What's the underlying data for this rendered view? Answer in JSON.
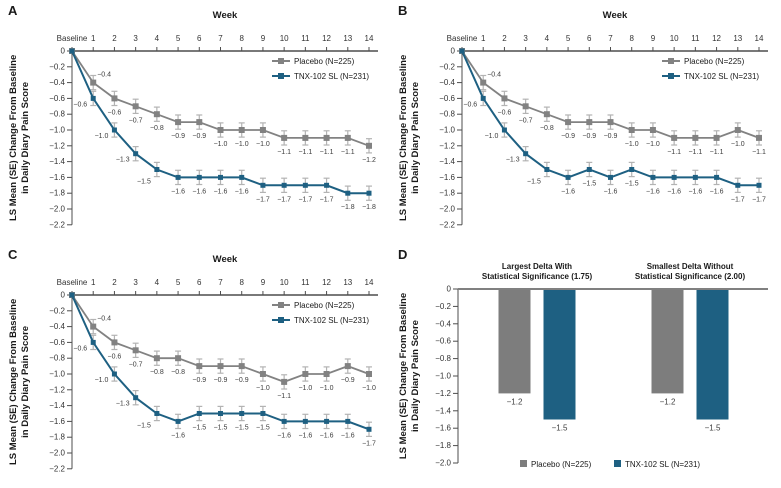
{
  "figure": {
    "panel_letters": [
      "A",
      "B",
      "C",
      "D"
    ],
    "colors": {
      "placebo": "#828282",
      "placebo_bar": "#7d7d7d",
      "tnx": "#1e6082",
      "error_bar": "#b3b3b3",
      "axis": "#4d4d4d",
      "zero_line": "#808080",
      "label_text": "#3d3d3d",
      "tick_text": "#333333",
      "title_text": "#1a1a1a"
    }
  },
  "chart_data": [
    {
      "panel": "A",
      "type": "line",
      "title": "Week",
      "ylabel_line1": "LS Mean (SE) Change From Baseline",
      "ylabel_line2": "in Daily Diary Pain Score",
      "categories": [
        "Baseline",
        "1",
        "2",
        "3",
        "4",
        "5",
        "6",
        "7",
        "8",
        "9",
        "10",
        "11",
        "12",
        "13",
        "14"
      ],
      "ylim": [
        0,
        -2.2
      ],
      "yticks": [
        "0",
        "−0.2",
        "−0.4",
        "−0.6",
        "−0.8",
        "−1.0",
        "−1.2",
        "−1.4",
        "−1.6",
        "−1.8",
        "−2.0",
        "−2.2"
      ],
      "grid": false,
      "legend_position": "top-right",
      "se": 0.09,
      "series": [
        {
          "name": "Placebo (N=225)",
          "color": "#828282",
          "values": [
            0,
            -0.4,
            -0.6,
            -0.7,
            -0.8,
            -0.9,
            -0.9,
            -1.0,
            -1.0,
            -1.0,
            -1.1,
            -1.1,
            -1.1,
            -1.1,
            -1.2
          ],
          "labels": [
            "",
            "−0.4",
            "−0.6",
            "−0.7",
            "−0.8",
            "−0.9",
            "−0.9",
            "−1.0",
            "−1.0",
            "−1.0",
            "−1.1",
            "−1.1",
            "−1.1",
            "−1.1",
            "−1.2"
          ]
        },
        {
          "name": "TNX-102 SL (N=231)",
          "color": "#1e6082",
          "values": [
            0,
            -0.6,
            -1.0,
            -1.3,
            -1.5,
            -1.6,
            -1.6,
            -1.6,
            -1.6,
            -1.7,
            -1.7,
            -1.7,
            -1.7,
            -1.8,
            -1.8
          ],
          "labels": [
            "",
            "−0.6",
            "−1.0",
            "−1.3",
            "−1.5",
            "−1.6",
            "−1.6",
            "−1.6",
            "−1.6",
            "−1.7",
            "−1.7",
            "−1.7",
            "−1.7",
            "−1.8",
            "−1.8"
          ]
        }
      ]
    },
    {
      "panel": "B",
      "type": "line",
      "title": "Week",
      "ylabel_line1": "LS Mean (SE) Change From Baseline",
      "ylabel_line2": "in Daily Diary Pain Score",
      "categories": [
        "Baseline",
        "1",
        "2",
        "3",
        "4",
        "5",
        "6",
        "7",
        "8",
        "9",
        "10",
        "11",
        "12",
        "13",
        "14"
      ],
      "ylim": [
        0,
        -2.2
      ],
      "yticks": [
        "0",
        "−0.2",
        "−0.4",
        "−0.6",
        "−0.8",
        "−1.0",
        "−1.2",
        "−1.4",
        "−1.6",
        "−1.8",
        "−2.0",
        "−2.2"
      ],
      "grid": false,
      "legend_position": "top-right",
      "se": 0.09,
      "series": [
        {
          "name": "Placebo (N=225)",
          "color": "#828282",
          "values": [
            0,
            -0.4,
            -0.6,
            -0.7,
            -0.8,
            -0.9,
            -0.9,
            -0.9,
            -1.0,
            -1.0,
            -1.1,
            -1.1,
            -1.1,
            -1.0,
            -1.1
          ],
          "labels": [
            "",
            "−0.4",
            "−0.6",
            "−0.7",
            "−0.8",
            "−0.9",
            "−0.9",
            "−0.9",
            "−1.0",
            "−1.0",
            "−1.1",
            "−1.1",
            "−1.1",
            "−1.0",
            "−1.1"
          ]
        },
        {
          "name": "TNX-102 SL (N=231)",
          "color": "#1e6082",
          "values": [
            0,
            -0.6,
            -1.0,
            -1.3,
            -1.5,
            -1.6,
            -1.5,
            -1.6,
            -1.5,
            -1.6,
            -1.6,
            -1.6,
            -1.6,
            -1.7,
            -1.7
          ],
          "labels": [
            "",
            "−0.6",
            "−1.0",
            "−1.3",
            "−1.5",
            "−1.6",
            "−1.5",
            "−1.6",
            "−1.5",
            "−1.6",
            "−1.6",
            "−1.6",
            "−1.6",
            "−1.7",
            "−1.7"
          ]
        }
      ]
    },
    {
      "panel": "C",
      "type": "line",
      "title": "Week",
      "ylabel_line1": "LS Mean (SE) Change From Baseline",
      "ylabel_line2": "in Daily Diary Pain Score",
      "categories": [
        "Baseline",
        "1",
        "2",
        "3",
        "4",
        "5",
        "6",
        "7",
        "8",
        "9",
        "10",
        "11",
        "12",
        "13",
        "14"
      ],
      "ylim": [
        0,
        -2.2
      ],
      "yticks": [
        "0",
        "−0.2",
        "−0.4",
        "−0.6",
        "−0.8",
        "−1.0",
        "−1.2",
        "−1.4",
        "−1.6",
        "−1.8",
        "−2.0",
        "−2.2"
      ],
      "grid": false,
      "legend_position": "top-right",
      "se": 0.09,
      "series": [
        {
          "name": "Placebo (N=225)",
          "color": "#828282",
          "values": [
            0,
            -0.4,
            -0.6,
            -0.7,
            -0.8,
            -0.8,
            -0.9,
            -0.9,
            -0.9,
            -1.0,
            -1.1,
            -1.0,
            -1.0,
            -0.9,
            -1.0
          ],
          "labels": [
            "",
            "−0.4",
            "−0.6",
            "−0.7",
            "−0.8",
            "−0.8",
            "−0.9",
            "−0.9",
            "−0.9",
            "−1.0",
            "−1.1",
            "−1.0",
            "−1.0",
            "−0.9",
            "−1.0"
          ]
        },
        {
          "name": "TNX-102 SL (N=231)",
          "color": "#1e6082",
          "values": [
            0,
            -0.6,
            -1.0,
            -1.3,
            -1.5,
            -1.6,
            -1.5,
            -1.5,
            -1.5,
            -1.5,
            -1.6,
            -1.6,
            -1.6,
            -1.6,
            -1.7
          ],
          "labels": [
            "",
            "−0.6",
            "−1.0",
            "−1.3",
            "−1.5",
            "−1.6",
            "−1.5",
            "−1.5",
            "−1.5",
            "−1.5",
            "−1.6",
            "−1.6",
            "−1.6",
            "−1.6",
            "−1.7"
          ]
        }
      ]
    },
    {
      "panel": "D",
      "type": "bar",
      "ylabel_line1": "LS Mean (SE) Change From Baseline",
      "ylabel_line2": "in Daily Diary Pain Score",
      "ylim": [
        0,
        -2.0
      ],
      "yticks": [
        "0",
        "−0.2",
        "−0.4",
        "−0.6",
        "−0.8",
        "−1.0",
        "−1.2",
        "−1.4",
        "−1.6",
        "−1.8",
        "−2.0"
      ],
      "grid": false,
      "legend_position": "bottom",
      "groups": [
        {
          "title_line1": "Largest Delta With",
          "title_line2": "Statistical Significance (1.75)"
        },
        {
          "title_line1": "Smallest Delta Without",
          "title_line2": "Statistical Significance (2.00)"
        }
      ],
      "series": [
        {
          "name": "Placebo (N=225)",
          "color": "#7d7d7d",
          "values": [
            -1.2,
            -1.2
          ],
          "labels": [
            "−1.2",
            "−1.2"
          ]
        },
        {
          "name": "TNX-102 SL (N=231)",
          "color": "#1e6082",
          "values": [
            -1.5,
            -1.5
          ],
          "labels": [
            "−1.5",
            "−1.5"
          ]
        }
      ]
    }
  ]
}
